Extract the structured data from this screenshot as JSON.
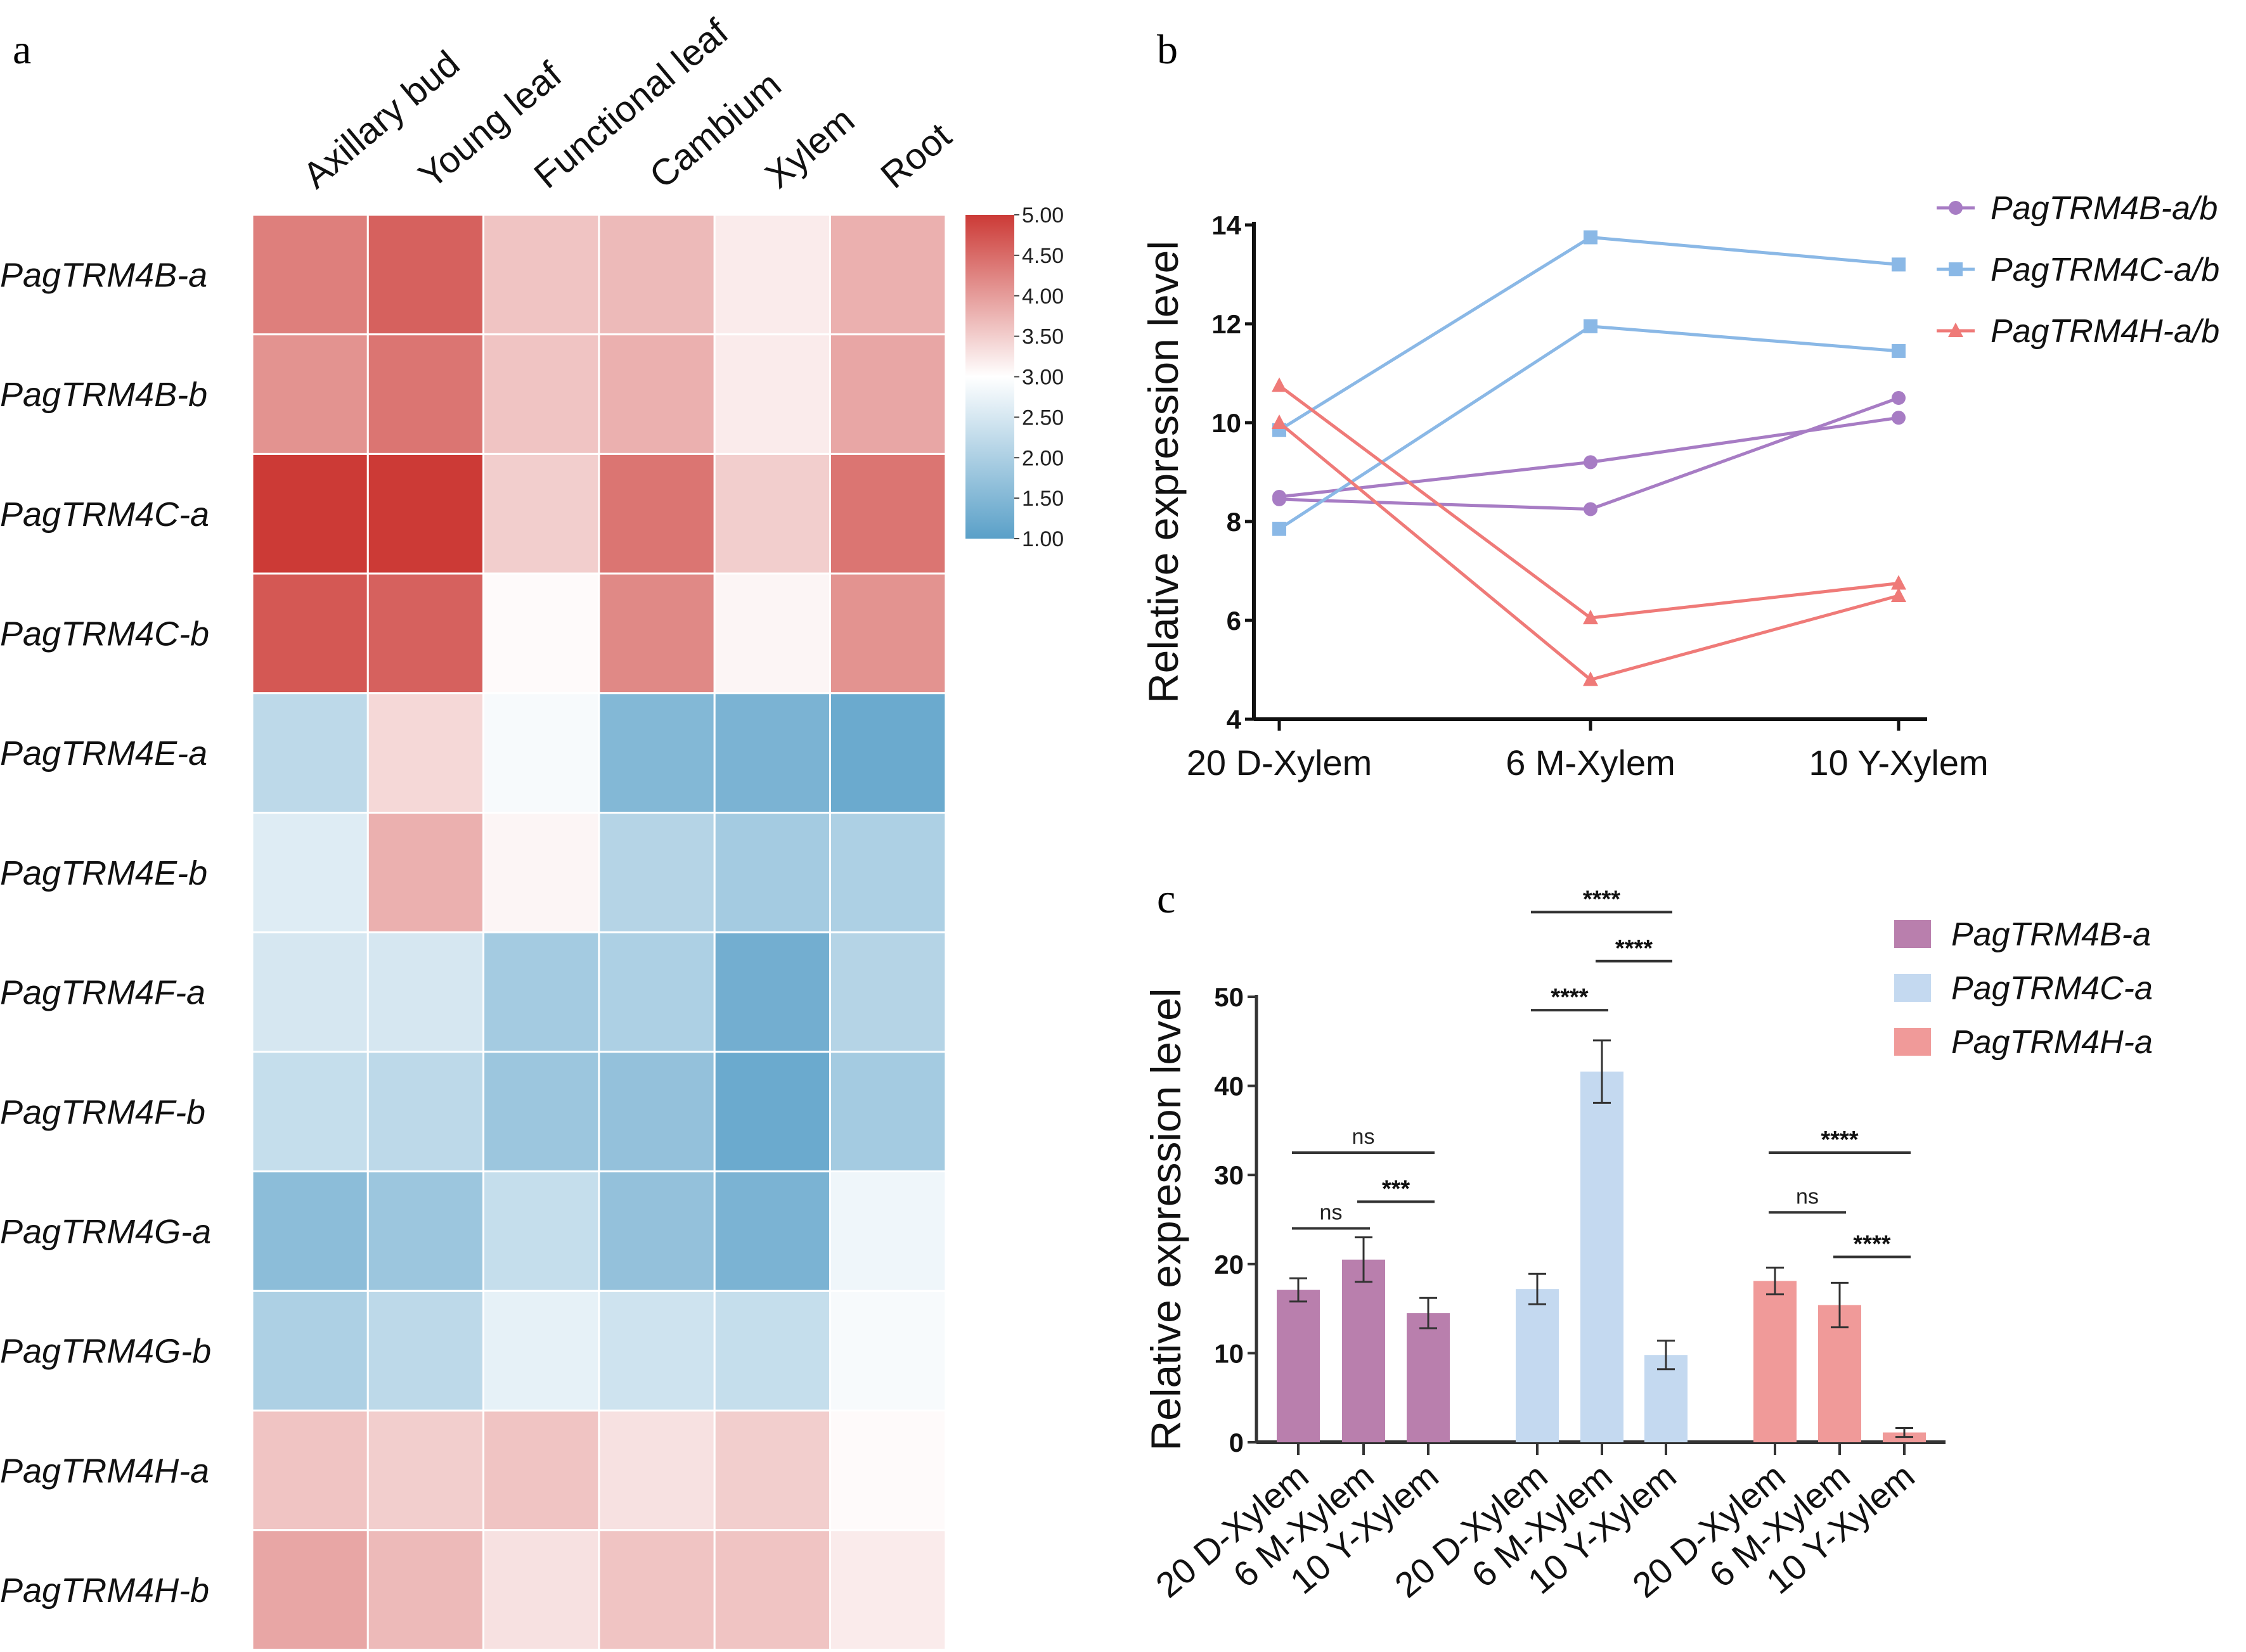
{
  "panel_labels": {
    "a": "a",
    "b": "b",
    "c": "c"
  },
  "chart_data": [
    {
      "type": "heatmap",
      "columns": [
        "Axillary bud",
        "Young leaf",
        "Functional leaf",
        "Cambium",
        "Xylem",
        "Root"
      ],
      "rows": [
        "PagTRM4B-a",
        "PagTRM4B-b",
        "PagTRM4C-a",
        "PagTRM4C-b",
        "PagTRM4E-a",
        "PagTRM4E-b",
        "PagTRM4F-a",
        "PagTRM4F-b",
        "PagTRM4G-a",
        "PagTRM4G-b",
        "PagTRM4H-a",
        "PagTRM4H-b"
      ],
      "values": [
        [
          4.3,
          4.6,
          3.6,
          3.7,
          3.2,
          3.8
        ],
        [
          4.1,
          4.4,
          3.6,
          3.8,
          3.2,
          3.9
        ],
        [
          5.0,
          5.0,
          3.5,
          4.4,
          3.5,
          4.4
        ],
        [
          4.7,
          4.6,
          3.05,
          4.2,
          3.1,
          4.1
        ],
        [
          2.2,
          3.4,
          2.9,
          1.5,
          1.4,
          1.2
        ],
        [
          2.6,
          3.8,
          3.1,
          2.1,
          1.9,
          2.0
        ],
        [
          2.5,
          2.5,
          1.9,
          2.0,
          1.3,
          2.1
        ],
        [
          2.3,
          2.2,
          1.8,
          1.7,
          1.2,
          1.9
        ],
        [
          1.6,
          1.8,
          2.3,
          1.7,
          1.4,
          2.8
        ],
        [
          2.0,
          2.2,
          2.7,
          2.4,
          2.3,
          2.9
        ],
        [
          3.6,
          3.5,
          3.6,
          3.3,
          3.5,
          3.05
        ],
        [
          3.9,
          3.7,
          3.3,
          3.6,
          3.6,
          3.2
        ]
      ],
      "colorbar": {
        "range": [
          1,
          5
        ],
        "ticks": [
          "5.00",
          "4.50",
          "4.00",
          "3.50",
          "3.00",
          "2.50",
          "2.00",
          "1.50",
          "1.00"
        ],
        "low_color": "#5aa0c8",
        "mid_color": "#ffffff",
        "high_color": "#cc3a36"
      }
    },
    {
      "type": "line",
      "ylabel": "Relative expression level",
      "categories": [
        "20 D-Xylem",
        "6 M-Xylem",
        "10 Y-Xylem"
      ],
      "ylim": [
        4,
        14
      ],
      "yticks": [
        "4",
        "6",
        "8",
        "10",
        "12",
        "14"
      ],
      "legend_position": "top-right",
      "legend": [
        {
          "name": "PagTRM4B-a/b",
          "color": "#a77cc4",
          "marker": "circle"
        },
        {
          "name": "PagTRM4C-a/b",
          "color": "#8ab8e6",
          "marker": "square"
        },
        {
          "name": "PagTRM4H-a/b",
          "color": "#ef7a78",
          "marker": "triangle"
        }
      ],
      "series": [
        {
          "group": 0,
          "values": [
            8.5,
            9.2,
            10.1
          ]
        },
        {
          "group": 0,
          "values": [
            8.45,
            8.25,
            10.5
          ]
        },
        {
          "group": 1,
          "values": [
            9.85,
            13.75,
            13.2
          ]
        },
        {
          "group": 1,
          "values": [
            7.85,
            11.95,
            11.45
          ]
        },
        {
          "group": 2,
          "values": [
            10.75,
            6.05,
            6.75
          ]
        },
        {
          "group": 2,
          "values": [
            10.0,
            4.8,
            6.5
          ]
        }
      ]
    },
    {
      "type": "bar",
      "ylabel": "Relative expression level",
      "ylim": [
        0,
        50
      ],
      "yticks": [
        "0",
        "10",
        "20",
        "30",
        "40",
        "50"
      ],
      "categories": [
        "20 D-Xylem",
        "6 M-Xylem",
        "10 Y-Xylem"
      ],
      "legend_position": "top-right",
      "series": [
        {
          "name": "PagTRM4B-a",
          "color": "#b97fad",
          "values": [
            17.1,
            20.5,
            14.5
          ],
          "errors": [
            1.3,
            2.5,
            1.7
          ],
          "comparisons": [
            {
              "from": 0,
              "to": 1,
              "label": "ns",
              "y": 24
            },
            {
              "from": 1,
              "to": 2,
              "label": "***",
              "y": 27
            },
            {
              "from": 0,
              "to": 2,
              "label": "ns",
              "y": 32.5
            }
          ]
        },
        {
          "name": "PagTRM4C-a",
          "color": "#c4d9f0",
          "values": [
            17.2,
            41.6,
            9.8
          ],
          "errors": [
            1.7,
            3.5,
            1.6
          ],
          "comparisons": [
            {
              "from": 0,
              "to": 1,
              "label": "****",
              "y": 48.5
            },
            {
              "from": 1,
              "to": 2,
              "label": "****",
              "y": 54
            },
            {
              "from": 0,
              "to": 2,
              "label": "****",
              "y": 59.5
            }
          ]
        },
        {
          "name": "PagTRM4H-a",
          "color": "#f09a99",
          "values": [
            18.1,
            15.4,
            1.1
          ],
          "errors": [
            1.5,
            2.5,
            0.5
          ],
          "comparisons": [
            {
              "from": 0,
              "to": 1,
              "label": "ns",
              "y": 25.8
            },
            {
              "from": 1,
              "to": 2,
              "label": "****",
              "y": 20.8
            },
            {
              "from": 0,
              "to": 2,
              "label": "****",
              "y": 32.5
            }
          ]
        }
      ]
    }
  ]
}
